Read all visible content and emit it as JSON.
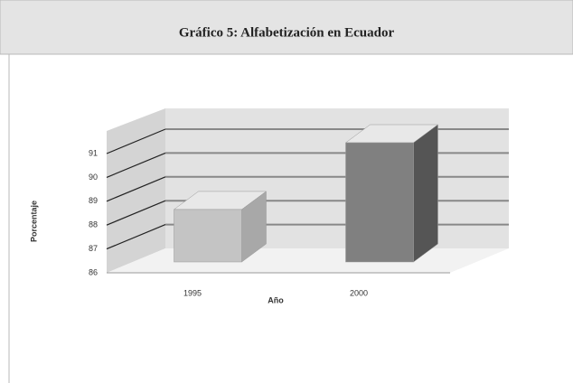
{
  "chart_data": {
    "type": "bar3d",
    "title": "Gráfico 5: Alfabetización en Ecuador",
    "categories": [
      "1995",
      "2000"
    ],
    "values": [
      88.2,
      91.0
    ],
    "colors": [
      "#c4c4c4",
      "#808080"
    ],
    "xlabel": "Año",
    "ylabel": "Porcentaje",
    "ylim": [
      86,
      91
    ],
    "yticks": [
      86,
      87,
      88,
      89,
      90,
      91
    ],
    "grid": true
  }
}
